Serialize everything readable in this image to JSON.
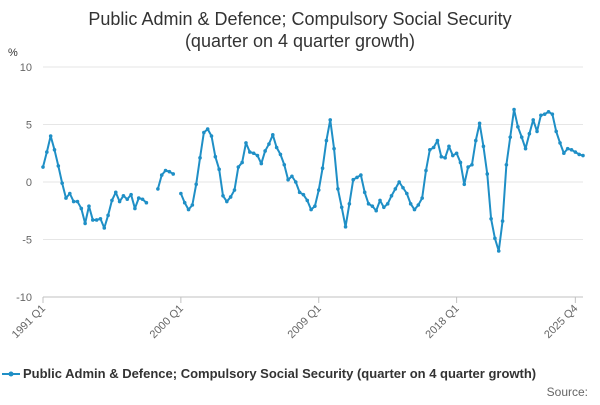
{
  "chart_data": {
    "type": "line",
    "title": "Public Admin & Defence; Compulsory Social Security",
    "subtitle": "(quarter on 4 quarter growth)",
    "y_unit": "%",
    "ylim": [
      -10,
      10
    ],
    "y_ticks": [
      "10",
      "5",
      "0",
      "-5",
      "-10"
    ],
    "x_tick_labels": [
      "1991 Q1",
      "2000 Q1",
      "2009 Q1",
      "2018 Q1",
      "2025 Q4"
    ],
    "x_start": "1991 Q1",
    "x_end": "2025 Q4",
    "grid": true,
    "legend_position": "bottom",
    "series": [
      {
        "name": "Public Admin & Defence; Compulsory Social Security (quarter on 4 quarter growth)",
        "color": "#1f8fc6",
        "values": [
          1.3,
          2.6,
          4.0,
          2.8,
          1.4,
          -0.1,
          -1.4,
          -1.0,
          -1.7,
          -1.7,
          -2.3,
          -3.6,
          -2.1,
          -3.3,
          -3.3,
          -3.2,
          -4.0,
          -2.9,
          -1.6,
          -0.9,
          -1.7,
          -1.2,
          -1.5,
          -1.1,
          -2.3,
          -1.4,
          -1.5,
          -1.8,
          null,
          null,
          -0.6,
          0.6,
          1.0,
          0.9,
          0.7,
          null,
          -1.0,
          -1.8,
          -2.4,
          -2.0,
          -0.2,
          2.1,
          4.3,
          4.6,
          4.0,
          2.2,
          1.1,
          -1.2,
          -1.7,
          -1.3,
          -0.7,
          1.3,
          1.7,
          3.4,
          2.6,
          2.5,
          2.3,
          1.6,
          2.7,
          3.3,
          4.1,
          3.0,
          2.4,
          1.5,
          0.2,
          0.5,
          0.0,
          -0.9,
          -1.1,
          -1.6,
          -2.4,
          -2.1,
          -0.7,
          1.2,
          3.6,
          5.4,
          2.9,
          -0.6,
          -2.2,
          -3.9,
          -1.9,
          0.2,
          0.4,
          0.6,
          -0.9,
          -1.9,
          -2.1,
          -2.5,
          -1.6,
          -2.2,
          -1.9,
          -1.2,
          -0.6,
          0.0,
          -0.5,
          -1.0,
          -1.9,
          -2.4,
          -2.0,
          -1.4,
          1.0,
          2.8,
          3.0,
          3.6,
          2.2,
          2.1,
          3.1,
          2.3,
          2.5,
          1.7,
          -0.2,
          1.3,
          1.5,
          3.6,
          5.1,
          3.1,
          0.7,
          -3.2,
          -4.9,
          -6.0,
          -3.4,
          1.5,
          3.9,
          6.3,
          4.8,
          3.9,
          2.9,
          4.2,
          5.4,
          4.4,
          5.8,
          5.9,
          6.1,
          5.9,
          4.4,
          3.4,
          2.5,
          2.9,
          2.8,
          2.6,
          2.4,
          2.3
        ]
      }
    ]
  },
  "footer": {
    "source_label": "Source:"
  }
}
